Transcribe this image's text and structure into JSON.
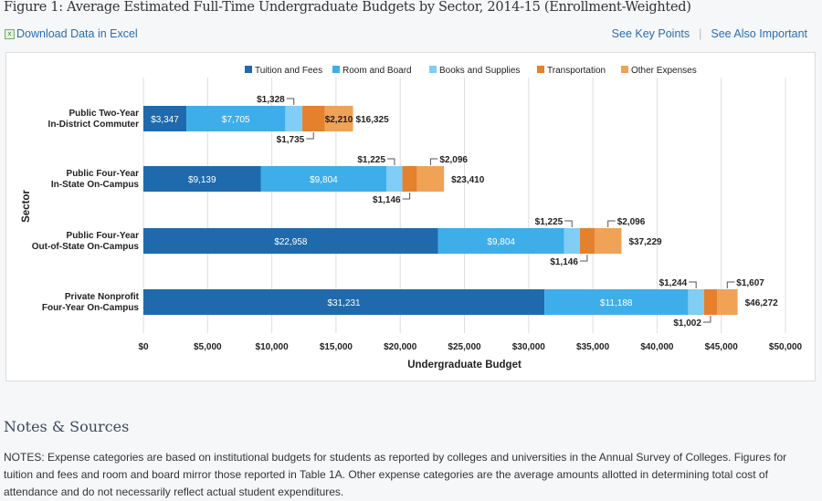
{
  "page": {
    "title": "Figure 1: Average Estimated Full-Time Undergraduate Budgets by Sector, 2014-15 (Enrollment-Weighted)",
    "download_label": "Download Data in Excel",
    "download_icon": "excel-file-icon",
    "key_points_label": "See Key Points",
    "separator": "|",
    "see_also_label": "See Also Important",
    "notes_heading": "Notes & Sources",
    "notes_text": "NOTES: Expense categories are based on institutional budgets for students as reported by colleges and universities in the Annual Survey of Colleges. Figures for tuition and fees and room and board mirror those reported in Table 1A. Other expense categories are the average amounts allotted in determining total cost of attendance and do not necessarily reflect actual student expenditures."
  },
  "chart_data": {
    "type": "bar",
    "orientation": "horizontal",
    "stacked": true,
    "xlabel": "Undergraduate Budget",
    "ylabel": "Sector",
    "xlim": [
      0,
      50000
    ],
    "x_ticks": [
      "$0",
      "$5,000",
      "$10,000",
      "$15,000",
      "$20,000",
      "$25,000",
      "$30,000",
      "$35,000",
      "$40,000",
      "$45,000",
      "$50,000"
    ],
    "grid": true,
    "legend_position": "top",
    "categories": [
      [
        "Public Two-Year",
        "In-District Commuter"
      ],
      [
        "Public Four-Year",
        "In-State On-Campus"
      ],
      [
        "Public Four-Year",
        "Out-of-State On-Campus"
      ],
      [
        "Private Nonprofit",
        "Four-Year On-Campus"
      ]
    ],
    "series": [
      {
        "name": "Tuition and Fees",
        "color": "#1f6aad",
        "values": [
          3347,
          9139,
          22958,
          31231
        ],
        "labels": [
          "$3,347",
          "$9,139",
          "$22,958",
          "$31,231"
        ]
      },
      {
        "name": "Room and Board",
        "color": "#3eaeea",
        "values": [
          7705,
          9804,
          9804,
          11188
        ],
        "labels": [
          "$7,705",
          "$9,804",
          "$9,804",
          "$11,188"
        ]
      },
      {
        "name": "Books and Supplies",
        "color": "#80cdf5",
        "values": [
          1328,
          1225,
          1225,
          1244
        ],
        "labels": [
          "$1,328",
          "$1,225",
          "$1,225",
          "$1,244"
        ]
      },
      {
        "name": "Transportation",
        "color": "#e5802c",
        "values": [
          1735,
          1146,
          1146,
          1002
        ],
        "labels": [
          "$1,735",
          "$1,146",
          "$1,146",
          "$1,002"
        ]
      },
      {
        "name": "Other Expenses",
        "color": "#f0a257",
        "values": [
          2210,
          2096,
          2096,
          1607
        ],
        "labels": [
          "$2,210",
          "$2,096",
          "$2,096",
          "$1,607"
        ]
      }
    ],
    "totals": [
      16325,
      23410,
      37229,
      46272
    ],
    "total_labels": [
      "$16,325",
      "$23,410",
      "$37,229",
      "$46,272"
    ]
  }
}
